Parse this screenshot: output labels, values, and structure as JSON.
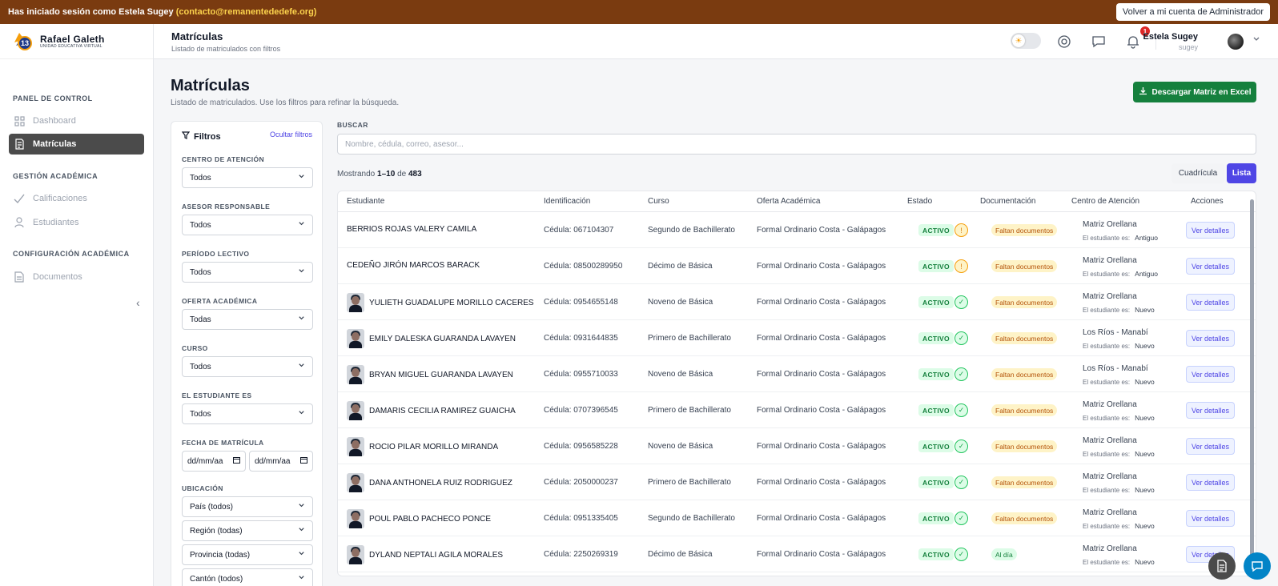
{
  "impersonation": {
    "prefix": "Has iniciado sesión como Estela Sugey",
    "email": "(contacto@remanentededefe.org)",
    "back_button": "Volver a mi cuenta de Administrador"
  },
  "brand": {
    "name": "Rafael Galeth",
    "subtitle": "UNIDAD EDUCATIVA VIRTUAL",
    "logo_number": "13"
  },
  "sidebar": {
    "sections": [
      {
        "title": "PANEL DE CONTROL",
        "items": [
          {
            "label": "Dashboard",
            "icon": "grid-icon"
          },
          {
            "label": "Matrículas",
            "icon": "enrollment-icon",
            "active": true
          }
        ]
      },
      {
        "title": "GESTIÓN ACADÉMICA",
        "items": [
          {
            "label": "Calificaciones",
            "icon": "check-icon"
          },
          {
            "label": "Estudiantes",
            "icon": "student-icon"
          }
        ]
      },
      {
        "title": "CONFIGURACIÓN ACADÉMICA",
        "items": [
          {
            "label": "Documentos",
            "icon": "document-icon"
          }
        ]
      }
    ]
  },
  "topbar": {
    "title": "Matrículas",
    "subtitle": "Listado de matriculados con filtros",
    "notification_count": "1",
    "user_name": "Estela Sugey",
    "user_handle": "sugey"
  },
  "page": {
    "title": "Matrículas",
    "subtitle": "Listado de matriculados. Use los filtros para refinar la búsqueda.",
    "excel_button": "Descargar Matriz en Excel"
  },
  "filters": {
    "title": "Filtros",
    "hide_link": "Ocultar filtros",
    "centro": {
      "label": "CENTRO DE ATENCIÓN",
      "value": "Todos"
    },
    "asesor": {
      "label": "ASESOR RESPONSABLE",
      "value": "Todos"
    },
    "periodo": {
      "label": "PERÍODO LECTIVO",
      "value": "Todos"
    },
    "oferta": {
      "label": "OFERTA ACADÉMICA",
      "value": "Todas"
    },
    "curso": {
      "label": "CURSO",
      "value": "Todos"
    },
    "estudiante_es": {
      "label": "EL ESTUDIANTE ES",
      "value": "Todos"
    },
    "fecha": {
      "label": "FECHA DE MATRÍCULA",
      "from": "dd/mm/aa",
      "to": "dd/mm/aa"
    },
    "ubicacion": {
      "label": "UBICACIÓN",
      "pais": "País (todos)",
      "region": "Región (todas)",
      "provincia": "Provincia (todas)",
      "canton": "Cantón (todos)"
    }
  },
  "search": {
    "label": "BUSCAR",
    "placeholder": "Nombre, cédula, correo, asesor..."
  },
  "results": {
    "prefix": "Mostrando",
    "range": "1–10",
    "of": "de",
    "total": "483"
  },
  "view_toggle": {
    "grid": "Cuadrícula",
    "list": "Lista"
  },
  "table": {
    "headers": {
      "student": "Estudiante",
      "id": "Identificación",
      "course": "Curso",
      "offer": "Oferta Académica",
      "status": "Estado",
      "docs": "Documentación",
      "center": "Centro de Atención",
      "actions": "Acciones"
    },
    "student_type_label": "El estudiante es:",
    "action_label": "Ver detalles",
    "rows": [
      {
        "name": "BERRIOS ROJAS VALERY CAMILA",
        "id": "Cédula: 067104307",
        "course": "Segundo de Bachillerato",
        "offer": "Formal Ordinario Costa - Galápagos",
        "status": "ACTIVO",
        "alert": "warn",
        "docs": "Faltan documentos",
        "docs_state": "missing",
        "center": "Matriz Orellana",
        "type": "Antiguo",
        "photo": false
      },
      {
        "name": "CEDEÑO JIRÓN MARCOS BARACK",
        "id": "Cédula: 08500289950",
        "course": "Décimo de Básica",
        "offer": "Formal Ordinario Costa - Galápagos",
        "status": "ACTIVO",
        "alert": "warn",
        "docs": "Faltan documentos",
        "docs_state": "missing",
        "center": "Matriz Orellana",
        "type": "Antiguo",
        "photo": false
      },
      {
        "name": "YULIETH GUADALUPE MORILLO CACERES",
        "id": "Cédula: 0954655148",
        "course": "Noveno de Básica",
        "offer": "Formal Ordinario Costa - Galápagos",
        "status": "ACTIVO",
        "alert": "ok",
        "docs": "Faltan documentos",
        "docs_state": "missing",
        "center": "Matriz Orellana",
        "type": "Nuevo",
        "photo": true
      },
      {
        "name": "EMILY DALESKA GUARANDA LAVAYEN",
        "id": "Cédula: 0931644835",
        "course": "Primero de Bachillerato",
        "offer": "Formal Ordinario Costa - Galápagos",
        "status": "ACTIVO",
        "alert": "ok",
        "docs": "Faltan documentos",
        "docs_state": "missing",
        "center": "Los Ríos - Manabí",
        "type": "Nuevo",
        "photo": true
      },
      {
        "name": "BRYAN MIGUEL GUARANDA LAVAYEN",
        "id": "Cédula: 0955710033",
        "course": "Noveno de Básica",
        "offer": "Formal Ordinario Costa - Galápagos",
        "status": "ACTIVO",
        "alert": "ok",
        "docs": "Faltan documentos",
        "docs_state": "missing",
        "center": "Los Ríos - Manabí",
        "type": "Nuevo",
        "photo": true
      },
      {
        "name": "DAMARIS CECILIA RAMIREZ GUAICHA",
        "id": "Cédula: 0707396545",
        "course": "Primero de Bachillerato",
        "offer": "Formal Ordinario Costa - Galápagos",
        "status": "ACTIVO",
        "alert": "ok",
        "docs": "Faltan documentos",
        "docs_state": "missing",
        "center": "Matriz Orellana",
        "type": "Nuevo",
        "photo": true
      },
      {
        "name": "ROCIO PILAR MORILLO MIRANDA",
        "id": "Cédula: 0956585228",
        "course": "Noveno de Básica",
        "offer": "Formal Ordinario Costa - Galápagos",
        "status": "ACTIVO",
        "alert": "ok",
        "docs": "Faltan documentos",
        "docs_state": "missing",
        "center": "Matriz Orellana",
        "type": "Nuevo",
        "photo": true
      },
      {
        "name": "DANA ANTHONELA RUIZ RODRIGUEZ",
        "id": "Cédula: 2050000237",
        "course": "Primero de Bachillerato",
        "offer": "Formal Ordinario Costa - Galápagos",
        "status": "ACTIVO",
        "alert": "ok",
        "docs": "Faltan documentos",
        "docs_state": "missing",
        "center": "Matriz Orellana",
        "type": "Nuevo",
        "photo": true
      },
      {
        "name": "POUL PABLO PACHECO PONCE",
        "id": "Cédula: 0951335405",
        "course": "Segundo de Bachillerato",
        "offer": "Formal Ordinario Costa - Galápagos",
        "status": "ACTIVO",
        "alert": "ok",
        "docs": "Faltan documentos",
        "docs_state": "missing",
        "center": "Matriz Orellana",
        "type": "Nuevo",
        "photo": true
      },
      {
        "name": "DYLAND NEPTALI AGILA MORALES",
        "id": "Cédula: 2250269319",
        "course": "Décimo de Básica",
        "offer": "Formal Ordinario Costa - Galápagos",
        "status": "ACTIVO",
        "alert": "ok",
        "docs": "Al día",
        "docs_state": "ok",
        "center": "Matriz Orellana",
        "type": "Nuevo",
        "photo": true
      }
    ]
  }
}
